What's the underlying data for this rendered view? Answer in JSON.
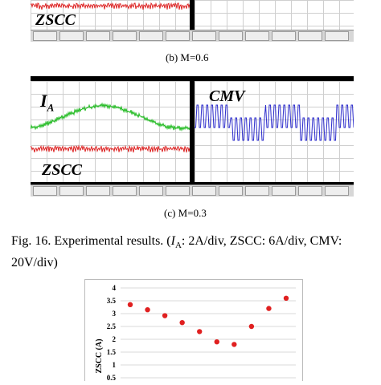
{
  "panel_b": {
    "left_label": "ZSCC",
    "caption": "(b) M=0.6"
  },
  "panel_c": {
    "left_label_main": "I",
    "left_label_sub": "A",
    "right_label": "CMV",
    "left_bottom_label": "ZSCC",
    "caption": "(c) M=0.3"
  },
  "figure_caption": {
    "prefix": "Fig. 16. Experimental results. (",
    "ia_main": "I",
    "ia_sub": "A",
    "rest_line1": ": 2A/div, ZSCC: 6A/div, CMV:",
    "line2": "20V/div)"
  },
  "chart_data": {
    "type": "scatter",
    "ylabel": "ZSCC (A)",
    "ylim": [
      0.5,
      4
    ],
    "yticks": [
      "4",
      "3.5",
      "3",
      "2.5",
      "2",
      "1.5",
      "1",
      "0.5"
    ],
    "x": [
      1,
      2,
      3,
      4,
      5,
      6,
      7,
      8,
      9,
      10
    ],
    "values": [
      3.35,
      3.15,
      2.92,
      2.65,
      2.3,
      1.9,
      1.8,
      2.5,
      3.2,
      3.6
    ],
    "grid": true,
    "point_color": "#e02020"
  },
  "colors": {
    "ia_trace": "#22bb22",
    "zscc_trace": "#dd2222",
    "cmv_trace": "#2d2dcc"
  }
}
